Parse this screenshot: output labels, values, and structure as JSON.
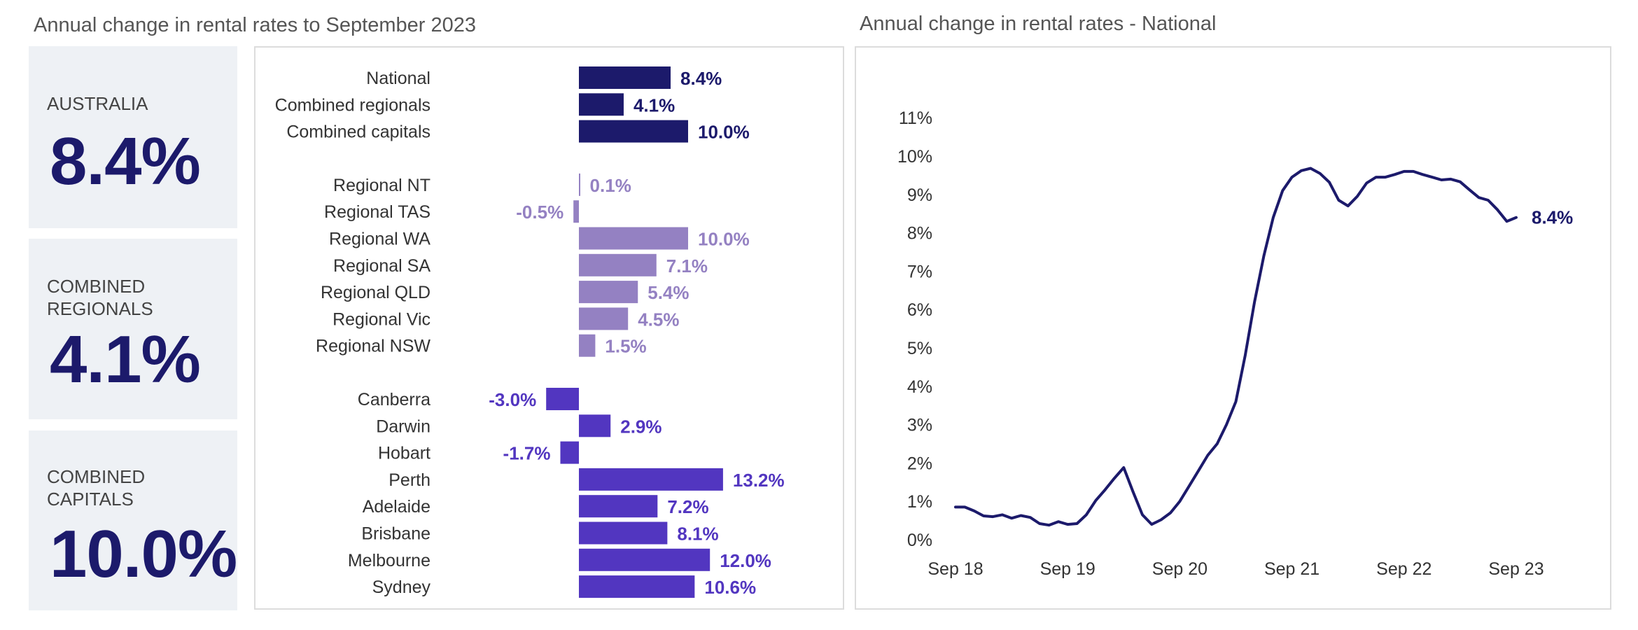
{
  "titles": {
    "left": "Annual change in rental rates to September 2023",
    "right": "Annual change in rental rates - National"
  },
  "cards": [
    {
      "label": "AUSTRALIA",
      "value": "8.4%"
    },
    {
      "label": "COMBINED\nREGIONALS",
      "value": "4.1%"
    },
    {
      "label": "COMBINED\nCAPITALS",
      "value": "10.0%"
    }
  ],
  "colors": {
    "summary": "#1c1a6b",
    "regional": "#9481c2",
    "capital": "#5236c0",
    "line": "#1c1a6b",
    "card_bg": "#eef1f5"
  },
  "chart_data": [
    {
      "type": "bar",
      "orientation": "horizontal",
      "title": "Annual change in rental rates to September 2023",
      "groups": [
        {
          "color_key": "summary",
          "categories": [
            "National",
            "Combined regionals",
            "Combined capitals"
          ],
          "values": [
            8.4,
            4.1,
            10.0
          ],
          "labels": [
            "8.4%",
            "4.1%",
            "10.0%"
          ]
        },
        {
          "color_key": "regional",
          "categories": [
            "Regional NT",
            "Regional TAS",
            "Regional WA",
            "Regional SA",
            "Regional QLD",
            "Regional Vic",
            "Regional NSW"
          ],
          "values": [
            0.1,
            -0.5,
            10.0,
            7.1,
            5.4,
            4.5,
            1.5
          ],
          "labels": [
            "0.1%",
            "-0.5%",
            "10.0%",
            "7.1%",
            "5.4%",
            "4.5%",
            "1.5%"
          ]
        },
        {
          "color_key": "capital",
          "categories": [
            "Canberra",
            "Darwin",
            "Hobart",
            "Perth",
            "Adelaide",
            "Brisbane",
            "Melbourne",
            "Sydney"
          ],
          "values": [
            -3.0,
            2.9,
            -1.7,
            13.2,
            7.2,
            8.1,
            12.0,
            10.6
          ],
          "labels": [
            "-3.0%",
            "2.9%",
            "-1.7%",
            "13.2%",
            "7.2%",
            "8.1%",
            "12.0%",
            "10.6%"
          ]
        }
      ]
    },
    {
      "type": "line",
      "title": "Annual change in rental rates - National",
      "xlabel": "",
      "ylabel": "",
      "x_tick_labels": [
        "Sep 18",
        "Sep 19",
        "Sep 20",
        "Sep 21",
        "Sep 22",
        "Sep 23"
      ],
      "y_tick_labels": [
        "0%",
        "1%",
        "2%",
        "3%",
        "4%",
        "5%",
        "6%",
        "7%",
        "8%",
        "9%",
        "10%",
        "11%"
      ],
      "ylim": [
        0,
        11
      ],
      "grid": false,
      "x_start": "2018-09",
      "x_step": "1 month",
      "values": [
        0.85,
        0.85,
        0.75,
        0.62,
        0.6,
        0.65,
        0.56,
        0.63,
        0.58,
        0.42,
        0.38,
        0.47,
        0.4,
        0.42,
        0.65,
        1.02,
        1.3,
        1.6,
        1.88,
        1.25,
        0.65,
        0.4,
        0.52,
        0.7,
        1.0,
        1.4,
        1.8,
        2.2,
        2.5,
        3.0,
        3.6,
        4.8,
        6.2,
        7.4,
        8.4,
        9.1,
        9.45,
        9.62,
        9.68,
        9.55,
        9.32,
        8.85,
        8.7,
        8.95,
        9.3,
        9.45,
        9.45,
        9.52,
        9.6,
        9.6,
        9.52,
        9.45,
        9.38,
        9.4,
        9.33,
        9.12,
        8.92,
        8.85,
        8.6,
        8.3,
        8.4
      ],
      "end_label": "8.4%"
    }
  ]
}
